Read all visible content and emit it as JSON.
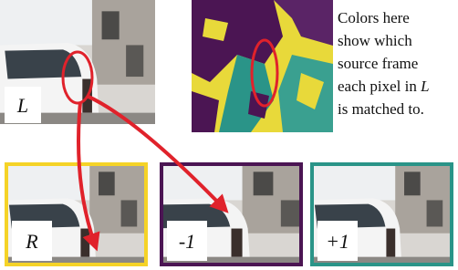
{
  "figure": {
    "top_label": "L",
    "caption": {
      "lines": [
        "Colors here",
        "show which",
        "source frame",
        "each pixel in",
        "is matched to."
      ],
      "italic": "L"
    },
    "frames": [
      {
        "label": "R",
        "color": "#f5d327"
      },
      {
        "label": "-1",
        "color": "#4b1553"
      },
      {
        "label": "+1",
        "color": "#2a9488"
      }
    ]
  }
}
